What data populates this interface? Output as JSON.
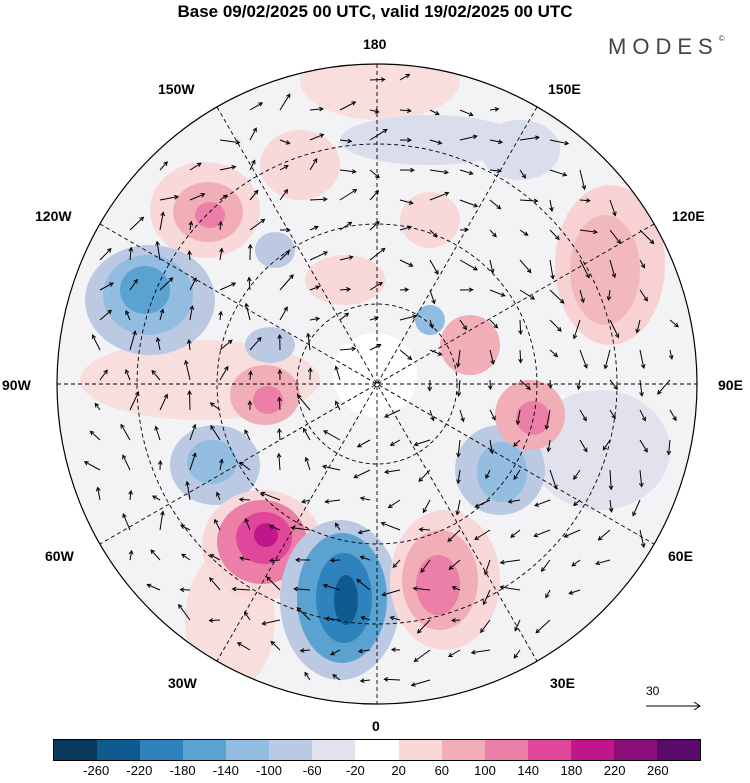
{
  "title": "Base 09/02/2025 00 UTC, valid 19/02/2025 00 UTC",
  "brand": "MODES",
  "brand_mark": "©",
  "longitude_labels": {
    "top": "180",
    "bottom": "0",
    "left": "90W",
    "right": "90E",
    "upper_left_1": "150W",
    "upper_left_2": "120W",
    "upper_right_1": "150E",
    "upper_right_2": "120E",
    "lower_left_1": "60W",
    "lower_left_2": "30W",
    "lower_right_1": "60E",
    "lower_right_2": "30E"
  },
  "reference_vector": "30",
  "colorbar": {
    "ticks": [
      "-260",
      "-220",
      "-180",
      "-140",
      "-100",
      "-60",
      "-20",
      "20",
      "60",
      "100",
      "140",
      "180",
      "220",
      "260"
    ],
    "colors": [
      "#0b3b5c",
      "#0f5b8f",
      "#2e83bd",
      "#5aa2cf",
      "#92bce0",
      "#bcc9e3",
      "#e3e3f0",
      "#ffffff",
      "#f8d8d8",
      "#f2aeb6",
      "#ec7fa8",
      "#e0479a",
      "#c0168a",
      "#8a0d7a",
      "#5a0a6b"
    ]
  },
  "anomaly_centers": [
    {
      "name": "gulf-of-alaska-high",
      "sign": "positive",
      "max_class": "140"
    },
    {
      "name": "hudson-bay-low",
      "sign": "negative",
      "max_class": "-180"
    },
    {
      "name": "labrador-low",
      "sign": "negative",
      "max_class": "-140"
    },
    {
      "name": "north-atlantic-high",
      "sign": "positive",
      "max_class": "220"
    },
    {
      "name": "east-atlantic-low",
      "sign": "negative",
      "max_class": "-220"
    },
    {
      "name": "europe-high",
      "sign": "positive",
      "max_class": "140"
    },
    {
      "name": "west-siberia-low",
      "sign": "negative",
      "max_class": "-140"
    },
    {
      "name": "central-siberia-high",
      "sign": "positive",
      "max_class": "140"
    },
    {
      "name": "east-siberia-high",
      "sign": "positive",
      "max_class": "100"
    }
  ]
}
